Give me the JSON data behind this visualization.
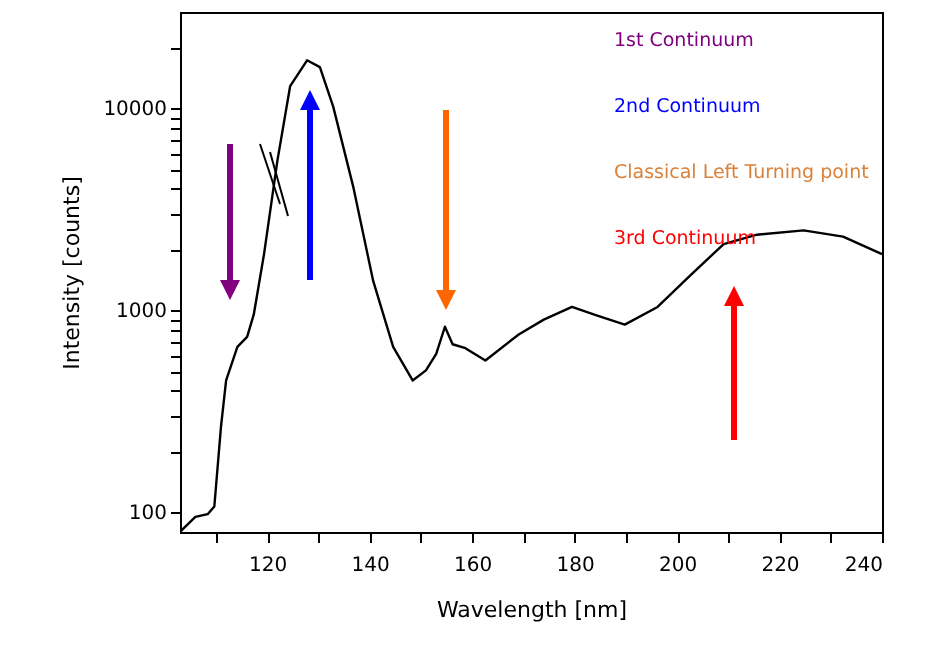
{
  "chart_data": {
    "type": "line",
    "xlabel": "Wavelength [nm]",
    "ylabel": "Intensity [counts]",
    "x": [
      103.2,
      106,
      108.4,
      109.7,
      111,
      112,
      114.2,
      116.1,
      117.4,
      119.4,
      122,
      124.5,
      127.8,
      130.3,
      132.9,
      136.8,
      140.7,
      144.6,
      148.4,
      151,
      153,
      154.7,
      156.2,
      158.7,
      162.6,
      169.1,
      174,
      179.5,
      184,
      189.8,
      196.2,
      202.7,
      209.1,
      215.6,
      224.7,
      232.4,
      240
    ],
    "series": [
      {
        "color": "#000000",
        "values": [
          81,
          95,
          98,
          107,
          266,
          450,
          660,
          740,
          955,
          1900,
          5500,
          12900,
          17300,
          16000,
          10200,
          4100,
          1400,
          660,
          450,
          505,
          610,
          830,
          680,
          650,
          565,
          760,
          900,
          1040,
          950,
          850,
          1040,
          1500,
          2130,
          2370,
          2490,
          2320,
          1900
        ]
      }
    ],
    "xlim": [
      103,
      240
    ],
    "ylim": [
      80,
      30000
    ],
    "log": "y",
    "grid": false,
    "xticks": [
      {
        "value": 110,
        "label": null
      },
      120,
      {
        "value": 130,
        "label": null
      },
      140,
      {
        "value": 150,
        "label": null
      },
      160,
      {
        "value": 170,
        "label": null
      },
      180,
      {
        "value": 190,
        "label": null
      },
      200,
      {
        "value": 210,
        "label": null
      },
      220,
      {
        "value": 230,
        "label": null
      },
      240
    ],
    "yticks": [
      100,
      {
        "value": 200,
        "label": null
      },
      {
        "value": 300,
        "label": null
      },
      {
        "value": 400,
        "label": null
      },
      {
        "value": 500,
        "label": null
      },
      {
        "value": 600,
        "label": null
      },
      {
        "value": 700,
        "label": null
      },
      {
        "value": 800,
        "label": null
      },
      {
        "value": 900,
        "label": null
      },
      1000,
      {
        "value": 2000,
        "label": null
      },
      {
        "value": 3000,
        "label": null
      },
      {
        "value": 4000,
        "label": null
      },
      {
        "value": 5000,
        "label": null
      },
      {
        "value": 6000,
        "label": null
      },
      {
        "value": 7000,
        "label": null
      },
      {
        "value": 8000,
        "label": null
      },
      {
        "value": 9000,
        "label": null
      },
      10000,
      {
        "value": 20000,
        "label": null
      }
    ],
    "annotations": [
      "1st Continuum",
      "2nd Continuum",
      "Classical Left Turning point",
      "3rd Continuum"
    ]
  }
}
